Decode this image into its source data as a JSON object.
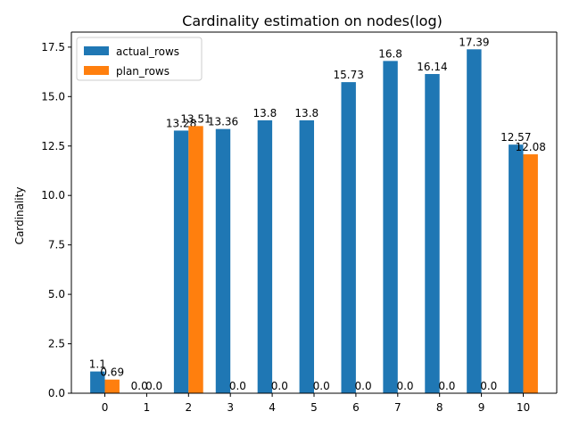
{
  "chart_data": {
    "type": "bar",
    "title": "Cardinality estimation on nodes(log)",
    "xlabel": "",
    "ylabel": "Cardinality",
    "categories": [
      "0",
      "1",
      "2",
      "3",
      "4",
      "5",
      "6",
      "7",
      "8",
      "9",
      "10"
    ],
    "series": [
      {
        "name": "actual_rows",
        "color": "#1f77b4",
        "values": [
          1.1,
          0.0,
          13.28,
          13.36,
          13.8,
          13.8,
          15.73,
          16.8,
          16.14,
          17.39,
          12.57
        ],
        "labels": [
          "1.1",
          "0.0",
          "13.28",
          "13.36",
          "13.8",
          "13.8",
          "15.73",
          "16.8",
          "16.14",
          "17.39",
          "12.57"
        ]
      },
      {
        "name": "plan_rows",
        "color": "#ff7f0e",
        "values": [
          0.69,
          0.0,
          13.51,
          0.0,
          0.0,
          0.0,
          0.0,
          0.0,
          0.0,
          0.0,
          12.08
        ],
        "labels": [
          "0.69",
          "0.0",
          "13.51",
          "0.0",
          "0.0",
          "0.0",
          "0.0",
          "0.0",
          "0.0",
          "0.0",
          "12.08"
        ]
      }
    ],
    "ylim": [
      0,
      18.26
    ],
    "yticks": [
      0.0,
      2.5,
      5.0,
      7.5,
      10.0,
      12.5,
      15.0,
      17.5
    ],
    "ytick_labels": [
      "0.0",
      "2.5",
      "5.0",
      "7.5",
      "10.0",
      "12.5",
      "15.0",
      "17.5"
    ],
    "grid": false,
    "legend_position": "top-left"
  }
}
